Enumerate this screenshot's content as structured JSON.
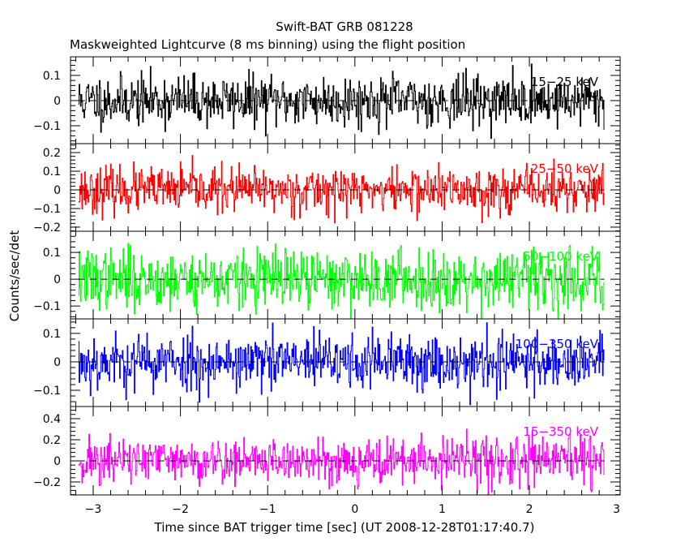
{
  "chart_data": {
    "type": "line",
    "title": "Swift-BAT GRB 081228",
    "subtitle": "Maskweighted Lightcurve (8 ms binning) using the flight position",
    "xlabel": "Time since BAT trigger time [sec] (UT 2008-12-28T01:17:40.7)",
    "ylabel": "Counts/sec/det",
    "xlim": [
      -3.26,
      3.04
    ],
    "x_ticks": [
      -3,
      -2,
      -1,
      0,
      1,
      2,
      3
    ],
    "x_tick_labels": [
      "−3",
      "−2",
      "−1",
      "0",
      "1",
      "2",
      "3"
    ],
    "bin_size_sec": 0.008,
    "data_x_range": [
      -3.17,
      2.86
    ],
    "grid": false,
    "panels": [
      {
        "name": "15-25 keV",
        "label": "15−25 keV",
        "color": "#000000",
        "ylim": [
          -0.171,
          0.174
        ],
        "y_ticks": [
          -0.1,
          0,
          0.1
        ],
        "y_tick_labels": [
          "−0.1",
          "0",
          "0.1"
        ],
        "noise_rms": 0.05,
        "mean": 0.0,
        "seed": 11
      },
      {
        "name": "25-50 keV",
        "label": "25−50 keV",
        "color": "#ff0000",
        "ylim": [
          -0.222,
          0.248
        ],
        "y_ticks": [
          -0.2,
          -0.1,
          0,
          0.1,
          0.2
        ],
        "y_tick_labels": [
          "−0.2",
          "−0.1",
          "0",
          "0.1",
          "0.2"
        ],
        "noise_rms": 0.06,
        "mean": 0.0,
        "seed": 23
      },
      {
        "name": "50-100 keV",
        "label": "50−100 keV",
        "color": "#00ff00",
        "ylim": [
          -0.148,
          0.179
        ],
        "y_ticks": [
          -0.1,
          0,
          0.1
        ],
        "y_tick_labels": [
          "−0.1",
          "0",
          "0.1"
        ],
        "noise_rms": 0.055,
        "mean": 0.0,
        "seed": 37
      },
      {
        "name": "100-350 keV",
        "label": "100−350 keV",
        "color": "#0000ff",
        "ylim": [
          -0.157,
          0.151
        ],
        "y_ticks": [
          -0.1,
          0,
          0.1
        ],
        "y_tick_labels": [
          "−0.1",
          "0",
          "0.1"
        ],
        "noise_rms": 0.05,
        "mean": 0.0,
        "seed": 53
      },
      {
        "name": "15-350 keV",
        "label": "15−350 keV",
        "color": "#ff00ff",
        "ylim": [
          -0.323,
          0.515
        ],
        "y_ticks": [
          -0.2,
          0,
          0.2,
          0.4
        ],
        "y_tick_labels": [
          "−0.2",
          "0",
          "0.2",
          "0.4"
        ],
        "noise_rms": 0.11,
        "mean": 0.0,
        "seed": 71
      }
    ]
  }
}
